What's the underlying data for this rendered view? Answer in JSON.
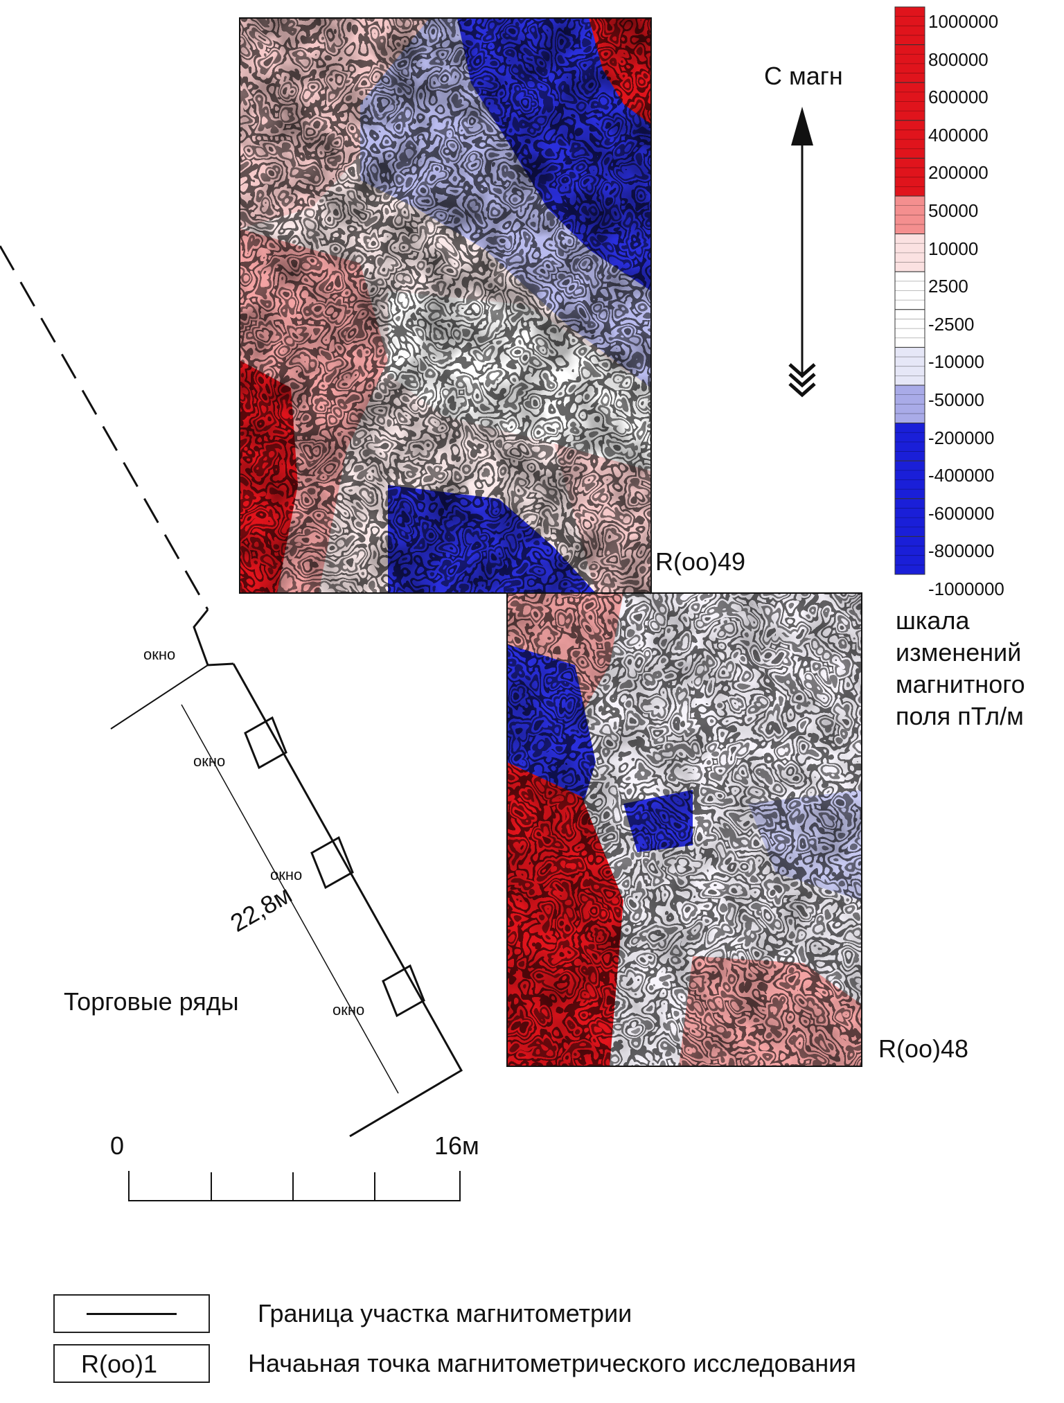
{
  "north_label": "С магн",
  "scale_title": [
    "шкала",
    "изменений",
    "магнитного",
    "поля пТл/м"
  ],
  "color_scale": {
    "labels": [
      "1000000",
      "800000",
      "600000",
      "400000",
      "200000",
      "50000",
      "10000",
      "2500",
      "-2500",
      "-10000",
      "-50000",
      "-200000",
      "-400000",
      "-600000",
      "-800000",
      "-1000000"
    ],
    "colors": [
      "#e0141c",
      "#e0141c",
      "#e0141c",
      "#e0141c",
      "#e0141c",
      "#f48f8f",
      "#fbe1e1",
      "#ffffff",
      "#ffffff",
      "#e6e7f7",
      "#a9abe8",
      "#1a1fd8",
      "#1a1fd8",
      "#1a1fd8",
      "#1a1fd8"
    ]
  },
  "survey_labels": {
    "upper": "R(oo)49",
    "lower": "R(oo)48"
  },
  "building": {
    "name": "Торговые ряды",
    "length": "22,8м",
    "window_label": "окно"
  },
  "scale_bar": {
    "start": "0",
    "end": "16м"
  },
  "legend": {
    "line_desc": "Граница участка магнитометрии",
    "point_symbol": "R(oo)1",
    "point_desc": "Начаьная точка магнитометрического исследования"
  },
  "colors": {
    "red": "#e0141c",
    "pink": "#f3a3a3",
    "blue": "#1a1fd8",
    "lightblue": "#b4b6ec"
  }
}
